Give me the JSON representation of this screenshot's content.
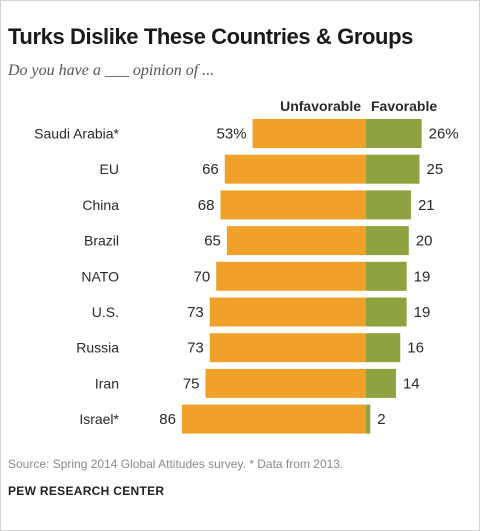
{
  "chart_data": {
    "type": "bar",
    "title": "Turks Dislike These Countries & Groups",
    "subtitle": "Do you have a ___ opinion of ...",
    "categories": [
      "Saudi Arabia*",
      "EU",
      "China",
      "Brazil",
      "NATO",
      "U.S.",
      "Russia",
      "Iran",
      "Israel*"
    ],
    "series": [
      {
        "name": "Unfavorable",
        "color": "#F0A12A",
        "values": [
          53,
          66,
          68,
          65,
          70,
          73,
          73,
          75,
          86
        ],
        "labels": [
          "53%",
          "66",
          "68",
          "65",
          "70",
          "73",
          "73",
          "75",
          "86"
        ]
      },
      {
        "name": "Favorable",
        "color": "#8FA240",
        "values": [
          26,
          25,
          21,
          20,
          19,
          19,
          16,
          14,
          2
        ],
        "labels": [
          "26%",
          "25",
          "21",
          "20",
          "19",
          "19",
          "16",
          "14",
          "2"
        ]
      }
    ],
    "layout_style": "diverging"
  },
  "footer": {
    "source": "Source: Spring 2014 Global Attitudes survey. * Data from 2013.",
    "brand": "PEW RESEARCH CENTER"
  }
}
